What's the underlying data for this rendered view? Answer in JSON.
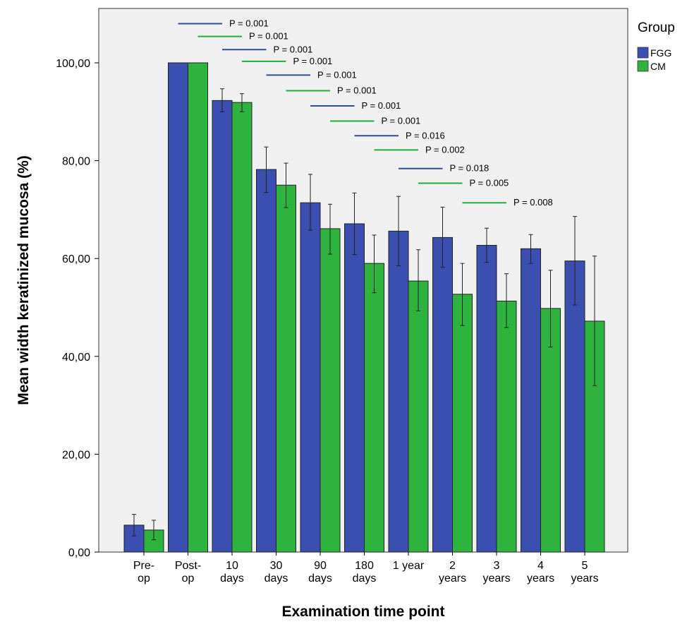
{
  "chart_data": {
    "type": "bar",
    "xlabel": "Examination time point",
    "ylabel": "Mean width keratinized mucosa (%)",
    "ylim": [
      0,
      112
    ],
    "yticks": [
      "0,00",
      "20,00",
      "40,00",
      "60,00",
      "80,00",
      "100,00"
    ],
    "yticks_values": [
      0,
      20,
      40,
      60,
      80,
      100
    ],
    "categories": [
      [
        "Pre-",
        "op"
      ],
      [
        "Post-",
        "op"
      ],
      [
        "10",
        "days"
      ],
      [
        "30",
        "days"
      ],
      [
        "90",
        "days"
      ],
      [
        "180",
        "days"
      ],
      [
        "1 year"
      ],
      [
        "2",
        "years"
      ],
      [
        "3",
        "years"
      ],
      [
        "4",
        "years"
      ],
      [
        "5",
        "years"
      ]
    ],
    "legend": {
      "title": "Group",
      "placement": "right"
    },
    "series": [
      {
        "name": "FGG",
        "color": "#3a4fb0",
        "values": [
          5.5,
          100,
          92.3,
          78.2,
          71.4,
          67.1,
          65.6,
          64.3,
          62.7,
          62.0,
          59.5
        ],
        "err_low": [
          3.3,
          100,
          90.0,
          73.5,
          65.8,
          60.8,
          58.5,
          58.2,
          59.2,
          59.0,
          50.5
        ],
        "err_high": [
          7.7,
          100,
          94.7,
          82.8,
          77.2,
          73.4,
          72.7,
          70.5,
          66.2,
          64.9,
          68.6
        ]
      },
      {
        "name": "CM",
        "color": "#2db33e",
        "values": [
          4.5,
          100,
          91.9,
          75.0,
          66.1,
          59.0,
          55.4,
          52.7,
          51.3,
          49.8,
          47.2
        ],
        "err_low": [
          2.5,
          100,
          90.0,
          70.4,
          60.9,
          53.0,
          49.3,
          46.3,
          45.9,
          41.9,
          34.0
        ],
        "err_high": [
          6.5,
          100,
          93.7,
          79.5,
          71.1,
          64.8,
          61.8,
          59.0,
          56.9,
          57.6,
          60.5
        ]
      }
    ],
    "annotations": [
      {
        "text": "P = 0.001",
        "group": "FGG",
        "y": 108.0,
        "from": 1,
        "to": 2
      },
      {
        "text": "P = 0.001",
        "group": "CM",
        "y": 105.4,
        "from": 1,
        "to": 2
      },
      {
        "text": "P = 0.001",
        "group": "FGG",
        "y": 102.7,
        "from": 2,
        "to": 3
      },
      {
        "text": "P = 0.001",
        "group": "CM",
        "y": 100.3,
        "from": 2,
        "to": 3
      },
      {
        "text": "P = 0.001",
        "group": "FGG",
        "y": 97.5,
        "from": 3,
        "to": 4
      },
      {
        "text": "P = 0.001",
        "group": "CM",
        "y": 94.3,
        "from": 3,
        "to": 4
      },
      {
        "text": "P = 0.001",
        "group": "FGG",
        "y": 91.2,
        "from": 4,
        "to": 5
      },
      {
        "text": "P = 0.001",
        "group": "CM",
        "y": 88.1,
        "from": 4,
        "to": 5
      },
      {
        "text": "P = 0.016",
        "group": "FGG",
        "y": 85.1,
        "from": 5,
        "to": 6
      },
      {
        "text": "P = 0.002",
        "group": "CM",
        "y": 82.2,
        "from": 5,
        "to": 6
      },
      {
        "text": "P = 0.018",
        "group": "FGG",
        "y": 78.4,
        "from": 6,
        "to": 7
      },
      {
        "text": "P = 0.005",
        "group": "CM",
        "y": 75.4,
        "from": 6,
        "to": 7
      },
      {
        "text": "P = 0.008",
        "group": "CM",
        "y": 71.4,
        "from": 7,
        "to": 8
      }
    ]
  }
}
